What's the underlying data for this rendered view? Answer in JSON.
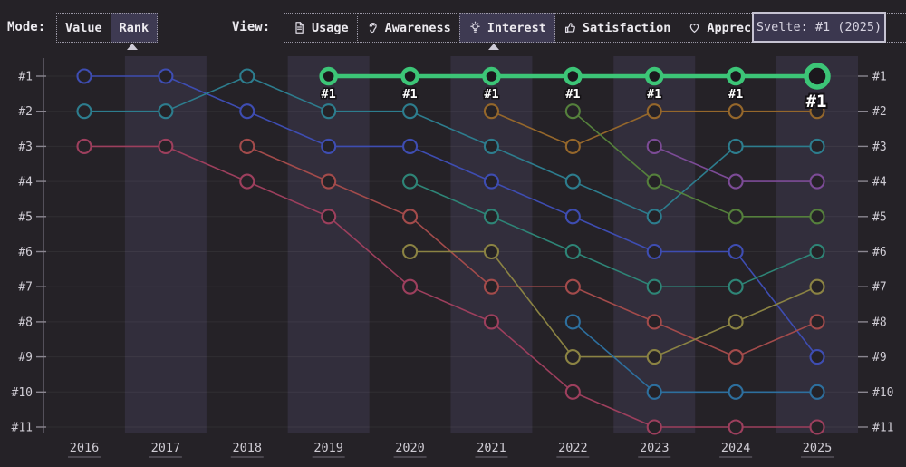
{
  "theme": {
    "background": "#252227",
    "band": "#322e3c",
    "gridline": "rgba(255,255,255,0.055)",
    "axis_line": "#54505a",
    "tick": "#8a8690",
    "axis_label": "#cfccd4",
    "selected_button_bg": "#3e3a52",
    "tooltip_bg": "#3b374f",
    "tooltip_border": "#c6c3d2",
    "highlight_green": "#3cc577"
  },
  "header": {
    "mode_label": "Mode:",
    "modes": [
      {
        "label": "Value",
        "selected": false
      },
      {
        "label": "Rank",
        "selected": true
      }
    ],
    "view_label": "View:",
    "views": [
      {
        "label": "Usage",
        "icon": "document-icon",
        "selected": false
      },
      {
        "label": "Awareness",
        "icon": "ear-icon",
        "selected": false
      },
      {
        "label": "Interest",
        "icon": "lightbulb-icon",
        "selected": true
      },
      {
        "label": "Satisfaction",
        "icon": "thumbs-up-icon",
        "selected": false
      },
      {
        "label": "Appreciation",
        "icon": "heart-icon",
        "selected": false
      }
    ],
    "tooltip_text": "Svelte: #1 (2025)"
  },
  "chart_data": {
    "type": "line",
    "subtype": "rank-bump-chart",
    "x": [
      2016,
      2017,
      2018,
      2019,
      2020,
      2021,
      2022,
      2023,
      2024,
      2025
    ],
    "rank_labels": [
      "#1",
      "#2",
      "#3",
      "#4",
      "#5",
      "#6",
      "#7",
      "#8",
      "#9",
      "#10",
      "#11"
    ],
    "ylim": [
      1,
      11
    ],
    "grid": true,
    "alternating_year_bands": [
      2017,
      2019,
      2021,
      2023,
      2025
    ],
    "series": [
      {
        "id": "royal-blue-framework",
        "color": "#3e4db2",
        "ranks": [
          1,
          1,
          2,
          3,
          3,
          4,
          5,
          6,
          6,
          9
        ]
      },
      {
        "id": "teal-framework",
        "color": "#2d7d8e",
        "ranks": [
          2,
          2,
          1,
          2,
          2,
          3,
          4,
          5,
          3,
          3
        ]
      },
      {
        "id": "crimson-framework",
        "color": "#9d3f5d",
        "ranks": [
          3,
          3,
          4,
          5,
          7,
          8,
          10,
          11,
          11,
          11
        ]
      },
      {
        "id": "red-framework",
        "color": "#a34b4b",
        "ranks": [
          null,
          null,
          3,
          4,
          5,
          7,
          7,
          8,
          9,
          8
        ]
      },
      {
        "id": "teal-green-framework",
        "color": "#2e8577",
        "ranks": [
          null,
          null,
          null,
          null,
          4,
          5,
          6,
          7,
          7,
          6
        ]
      },
      {
        "id": "olive-framework",
        "color": "#8b8343",
        "ranks": [
          null,
          null,
          null,
          null,
          6,
          6,
          9,
          9,
          8,
          7
        ]
      },
      {
        "id": "orange-framework",
        "color": "#95672b",
        "ranks": [
          null,
          null,
          null,
          null,
          null,
          2,
          3,
          2,
          2,
          2
        ]
      },
      {
        "id": "green-framework",
        "color": "#55803c",
        "ranks": [
          null,
          null,
          null,
          null,
          null,
          null,
          2,
          4,
          5,
          5
        ]
      },
      {
        "id": "steel-blue-framework",
        "color": "#2d6f9e",
        "ranks": [
          null,
          null,
          null,
          null,
          null,
          null,
          8,
          10,
          10,
          10
        ]
      },
      {
        "id": "purple-framework",
        "color": "#7c4b96",
        "ranks": [
          null,
          null,
          null,
          null,
          null,
          null,
          null,
          3,
          4,
          4
        ]
      },
      {
        "id": "svelte",
        "color": "#3cc577",
        "highlight": true,
        "ranks": [
          null,
          null,
          null,
          1,
          1,
          1,
          1,
          1,
          1,
          1
        ],
        "point_label": "#1",
        "end_label": "#1"
      }
    ]
  }
}
